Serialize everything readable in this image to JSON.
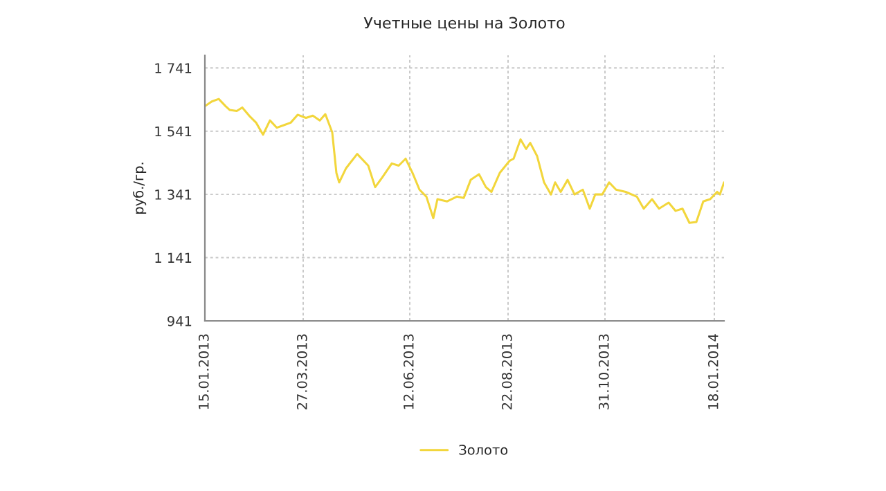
{
  "chart_data": {
    "type": "line",
    "title": "Учетные цены на Золото",
    "ylabel": "руб./гр.",
    "xlim": [
      "2013-01-15",
      "2014-01-25"
    ],
    "ylim": [
      941,
      1781
    ],
    "xticks": [
      {
        "value": "2013-01-15",
        "label": "15.01.2013"
      },
      {
        "value": "2013-03-27",
        "label": "27.03.2013"
      },
      {
        "value": "2013-06-12",
        "label": "12.06.2013"
      },
      {
        "value": "2013-08-22",
        "label": "22.08.2013"
      },
      {
        "value": "2013-10-31",
        "label": "31.10.2013"
      },
      {
        "value": "2014-01-18",
        "label": "18.01.2014"
      }
    ],
    "yticks": [
      941,
      {
        "value": 1141,
        "label": "1 141"
      },
      {
        "value": 1341,
        "label": "1 341"
      },
      {
        "value": 1541,
        "label": "1 541"
      },
      {
        "value": 1741,
        "label": "1 741"
      }
    ],
    "grid": true,
    "legend": "bottom",
    "series": [
      {
        "name": "Золото",
        "color": "#f2d63c",
        "x": [
          "2013-01-15",
          "2013-01-20",
          "2013-01-25",
          "2013-01-30",
          "2013-02-02",
          "2013-02-07",
          "2013-02-11",
          "2013-02-16",
          "2013-02-21",
          "2013-02-26",
          "2013-03-03",
          "2013-03-08",
          "2013-03-13",
          "2013-03-18",
          "2013-03-23",
          "2013-03-29",
          "2013-04-03",
          "2013-04-08",
          "2013-04-12",
          "2013-04-17",
          "2013-04-20",
          "2013-04-22",
          "2013-04-27",
          "2013-05-05",
          "2013-05-13",
          "2013-05-18",
          "2013-05-23",
          "2013-05-30",
          "2013-06-04",
          "2013-06-09",
          "2013-06-14",
          "2013-06-19",
          "2013-06-24",
          "2013-06-29",
          "2013-07-02",
          "2013-07-09",
          "2013-07-16",
          "2013-07-21",
          "2013-07-26",
          "2013-08-01",
          "2013-08-06",
          "2013-08-10",
          "2013-08-16",
          "2013-08-23",
          "2013-08-26",
          "2013-08-31",
          "2013-09-04",
          "2013-09-07",
          "2013-09-12",
          "2013-09-17",
          "2013-09-22",
          "2013-09-25",
          "2013-09-29",
          "2013-10-04",
          "2013-10-09",
          "2013-10-15",
          "2013-10-20",
          "2013-10-24",
          "2013-10-29",
          "2013-11-03",
          "2013-11-08",
          "2013-11-15",
          "2013-11-23",
          "2013-11-28",
          "2013-12-04",
          "2013-12-09",
          "2013-12-16",
          "2013-12-21",
          "2013-12-26",
          "2013-12-31",
          "2014-01-05",
          "2014-01-10",
          "2014-01-15",
          "2014-01-20",
          "2014-01-22",
          "2014-01-25"
        ],
        "values": [
          1620,
          1635,
          1643,
          1620,
          1608,
          1605,
          1616,
          1590,
          1568,
          1530,
          1575,
          1552,
          1560,
          1568,
          1593,
          1583,
          1590,
          1575,
          1595,
          1537,
          1409,
          1379,
          1424,
          1469,
          1432,
          1364,
          1394,
          1439,
          1432,
          1454,
          1409,
          1356,
          1334,
          1266,
          1326,
          1319,
          1334,
          1330,
          1387,
          1405,
          1364,
          1349,
          1409,
          1447,
          1454,
          1515,
          1485,
          1504,
          1462,
          1379,
          1341,
          1379,
          1349,
          1387,
          1341,
          1356,
          1296,
          1341,
          1341,
          1379,
          1356,
          1349,
          1334,
          1296,
          1326,
          1296,
          1315,
          1289,
          1296,
          1251,
          1254,
          1319,
          1326,
          1349,
          1341,
          1379
        ]
      }
    ]
  }
}
